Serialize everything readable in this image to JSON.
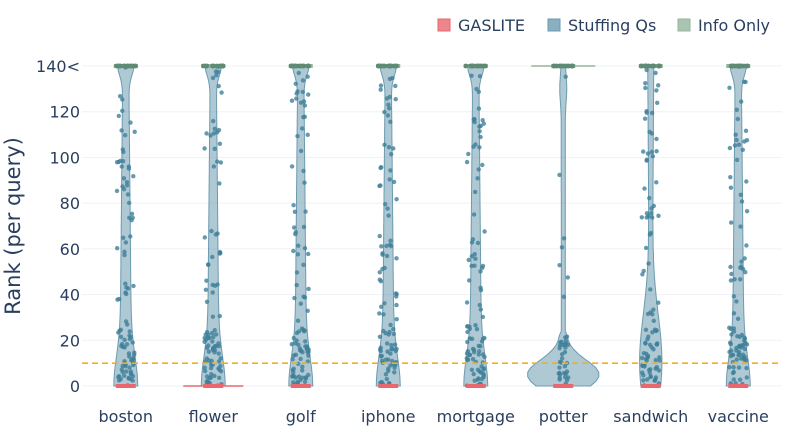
{
  "chart_data": {
    "type": "violin",
    "categories": [
      "boston",
      "flower",
      "golf",
      "iphone",
      "mortgage",
      "potter",
      "sandwich",
      "vaccine"
    ],
    "ylabel": "Rank (per query)",
    "ylim": [
      0,
      140
    ],
    "yticks": [
      0,
      20,
      40,
      60,
      80,
      100,
      120
    ],
    "ytop_label": "140<",
    "threshold_line": {
      "y": 10,
      "color": "#f2b01e",
      "style": "dashed"
    },
    "legend": {
      "placement": "top-right",
      "entries": [
        {
          "name": "GASLITE",
          "color": "#e8686d"
        },
        {
          "name": "Stuffing Qs",
          "color": "#6c9bb0"
        },
        {
          "name": "Info Only",
          "color": "#93b59c"
        }
      ]
    },
    "series": [
      {
        "name": "GASLITE",
        "values_approx": {
          "boston": [
            0
          ],
          "flower": [
            0
          ],
          "golf": [
            0
          ],
          "iphone": [
            0
          ],
          "mortgage": [
            0
          ],
          "potter": [
            0
          ],
          "sandwich": [
            0
          ],
          "vaccine": [
            0
          ]
        }
      },
      {
        "name": "Stuffing Qs",
        "median_approx": {
          "boston": 140,
          "flower": 140,
          "golf": 140,
          "iphone": 140,
          "mortgage": 140,
          "potter": 5,
          "sandwich": 140,
          "vaccine": 140
        }
      },
      {
        "name": "Info Only",
        "median_approx": {
          "boston": 140,
          "flower": 140,
          "golf": 140,
          "iphone": 140,
          "mortgage": 140,
          "potter": 140,
          "sandwich": 140,
          "vaccine": 140
        }
      }
    ]
  }
}
